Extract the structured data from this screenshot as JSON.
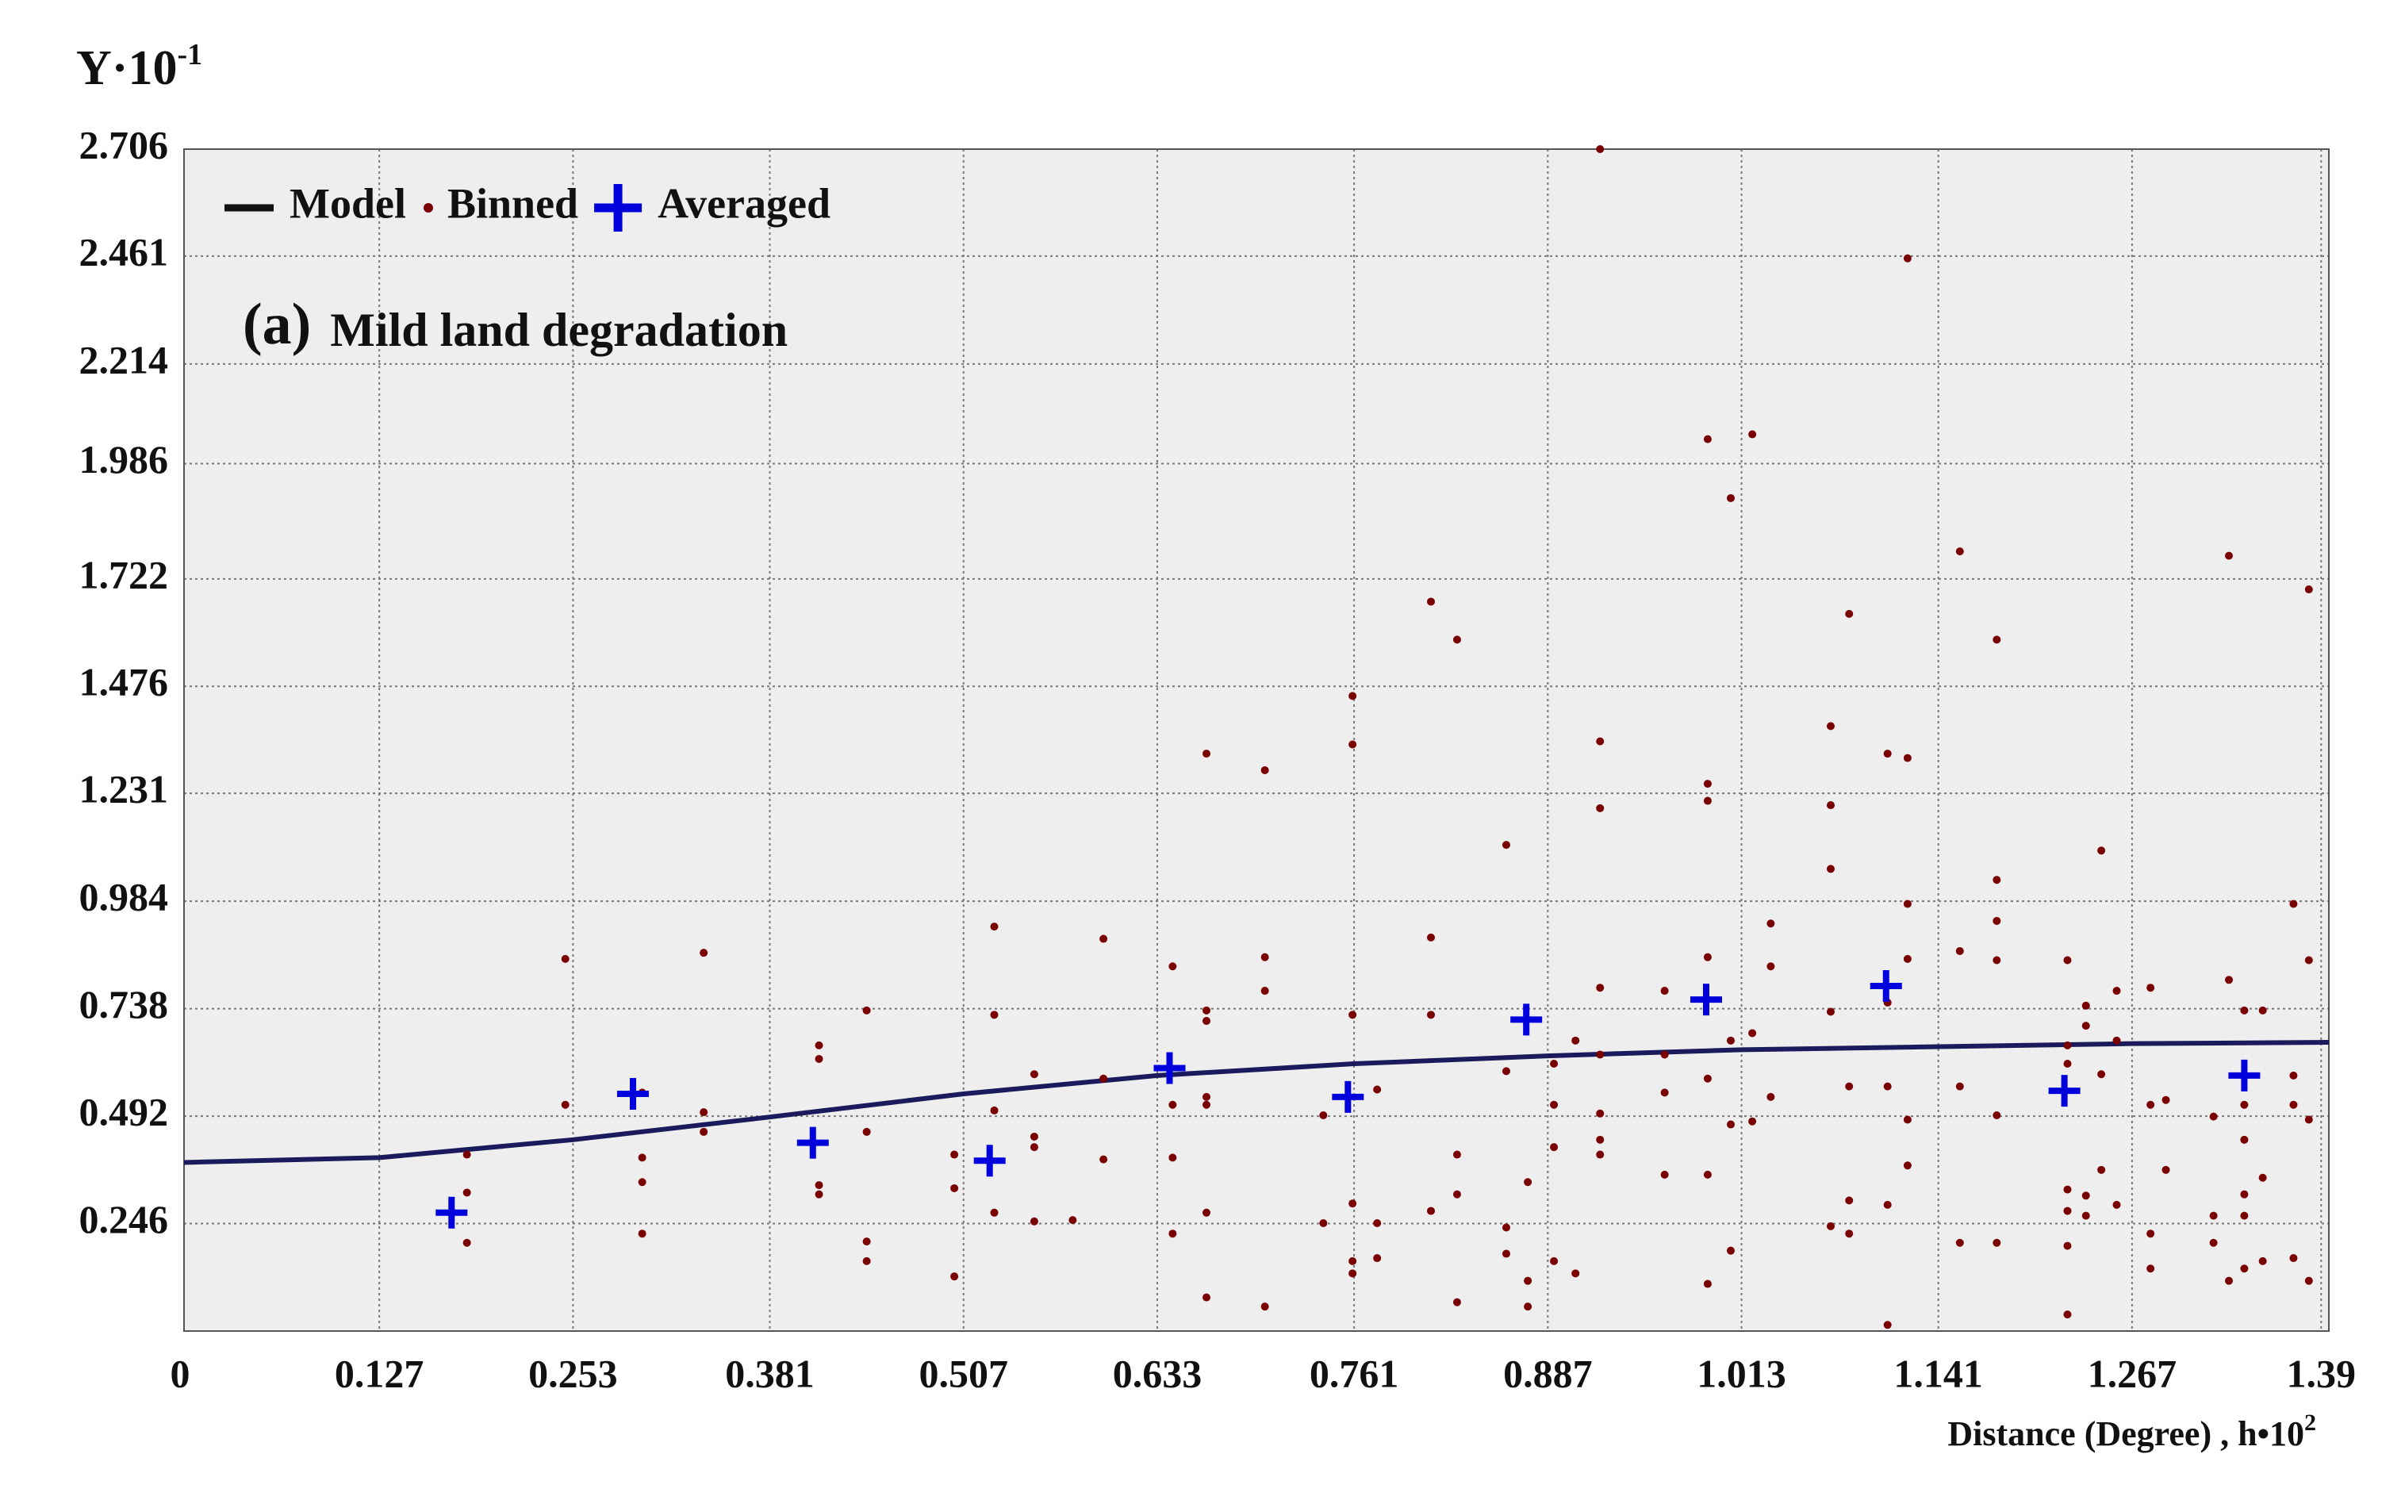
{
  "chart_data": {
    "type": "scatter",
    "y_label": "Y·10",
    "y_label_exponent": "-1",
    "x_label": "Distance (Degree) , h•10",
    "x_label_exponent": "2",
    "annotation_letter": "(a)",
    "annotation": "Mild land degradation",
    "xlim": [
      0,
      1.395
    ],
    "ylim": [
      0,
      2.706
    ],
    "xticks": [
      0,
      0.127,
      0.253,
      0.381,
      0.507,
      0.633,
      0.761,
      0.887,
      1.013,
      1.141,
      1.267,
      1.39
    ],
    "yticks": [
      0.246,
      0.492,
      0.738,
      0.984,
      1.231,
      1.476,
      1.722,
      1.986,
      2.214,
      2.461,
      2.706
    ],
    "grid": true,
    "background": "#eeeeee",
    "series": [
      {
        "name": "Model",
        "type": "line",
        "color": "#1a1a5c",
        "x": [
          0,
          0.127,
          0.253,
          0.381,
          0.507,
          0.633,
          0.761,
          0.887,
          1.013,
          1.141,
          1.267,
          1.395
        ],
        "values": [
          0.386,
          0.397,
          0.438,
          0.49,
          0.543,
          0.585,
          0.612,
          0.63,
          0.644,
          0.651,
          0.658,
          0.661
        ]
      },
      {
        "name": "Binned",
        "type": "scatter",
        "marker": "dot",
        "color": "#7a0000",
        "x": [
          0.184,
          0.184,
          0.184,
          0.248,
          0.248,
          0.298,
          0.298,
          0.298,
          0.298,
          0.338,
          0.338,
          0.338,
          0.413,
          0.413,
          0.413,
          0.413,
          0.444,
          0.444,
          0.444,
          0.444,
          0.501,
          0.501,
          0.501,
          0.527,
          0.527,
          0.527,
          0.527,
          0.553,
          0.553,
          0.553,
          0.553,
          0.578,
          0.598,
          0.598,
          0.598,
          0.643,
          0.643,
          0.643,
          0.643,
          0.665,
          0.665,
          0.665,
          0.665,
          0.665,
          0.665,
          0.665,
          0.703,
          0.703,
          0.703,
          0.703,
          0.741,
          0.741,
          0.76,
          0.76,
          0.76,
          0.76,
          0.76,
          0.76,
          0.776,
          0.776,
          0.776,
          0.811,
          0.811,
          0.811,
          0.811,
          0.828,
          0.828,
          0.828,
          0.828,
          0.86,
          0.86,
          0.86,
          0.86,
          0.874,
          0.874,
          0.874,
          0.891,
          0.891,
          0.891,
          0.891,
          0.905,
          0.905,
          0.921,
          0.921,
          0.921,
          0.921,
          0.921,
          0.921,
          0.921,
          0.921,
          0.963,
          0.963,
          0.963,
          0.963,
          0.991,
          0.991,
          0.991,
          0.991,
          0.991,
          0.991,
          0.991,
          1.006,
          1.006,
          1.006,
          1.006,
          1.02,
          1.02,
          1.02,
          1.032,
          1.032,
          1.032,
          1.071,
          1.071,
          1.071,
          1.071,
          1.071,
          1.083,
          1.083,
          1.083,
          1.083,
          1.108,
          1.108,
          1.108,
          1.108,
          1.108,
          1.121,
          1.121,
          1.121,
          1.121,
          1.121,
          1.121,
          1.155,
          1.155,
          1.155,
          1.155,
          1.179,
          1.179,
          1.179,
          1.179,
          1.179,
          1.179,
          1.225,
          1.225,
          1.225,
          1.225,
          1.225,
          1.225,
          1.225,
          1.237,
          1.237,
          1.237,
          1.237,
          1.247,
          1.247,
          1.247,
          1.257,
          1.257,
          1.257,
          1.279,
          1.279,
          1.279,
          1.279,
          1.289,
          1.289,
          1.32,
          1.32,
          1.32,
          1.33,
          1.33,
          1.33,
          1.34,
          1.34,
          1.34,
          1.34,
          1.34,
          1.34,
          1.352,
          1.352,
          1.352,
          1.372,
          1.372,
          1.372,
          1.372,
          1.382,
          1.382,
          1.382,
          1.382
        ],
        "values": [
          0.317,
          0.404,
          0.202,
          0.852,
          0.518,
          0.546,
          0.397,
          0.341,
          0.223,
          0.866,
          0.501,
          0.456,
          0.654,
          0.623,
          0.334,
          0.313,
          0.734,
          0.456,
          0.205,
          0.16,
          0.404,
          0.327,
          0.125,
          0.926,
          0.724,
          0.505,
          0.271,
          0.588,
          0.445,
          0.421,
          0.251,
          0.254,
          0.898,
          0.578,
          0.393,
          0.835,
          0.518,
          0.397,
          0.223,
          1.322,
          0.734,
          0.71,
          0.536,
          0.518,
          0.271,
          0.077,
          1.284,
          0.856,
          0.779,
          0.056,
          0.494,
          0.247,
          1.454,
          1.343,
          0.724,
          0.292,
          0.16,
          0.132,
          0.553,
          0.247,
          0.167,
          1.67,
          0.901,
          0.724,
          0.275,
          1.583,
          0.404,
          0.313,
          0.066,
          1.113,
          0.595,
          0.237,
          0.177,
          0.341,
          0.115,
          0.056,
          0.612,
          0.518,
          0.421,
          0.16,
          0.665,
          0.132,
          2.706,
          1.35,
          1.197,
          0.786,
          0.633,
          0.498,
          0.438,
          0.404,
          0.779,
          0.633,
          0.546,
          0.358,
          2.042,
          1.253,
          1.214,
          0.856,
          0.578,
          0.358,
          0.108,
          1.907,
          0.665,
          0.473,
          0.184,
          2.053,
          0.682,
          0.48,
          0.933,
          0.835,
          0.536,
          1.385,
          1.204,
          1.058,
          0.731,
          0.24,
          1.642,
          0.56,
          0.299,
          0.223,
          1.322,
          0.752,
          0.56,
          0.289,
          0.014,
          2.456,
          1.312,
          0.978,
          0.852,
          0.379,
          0.484,
          1.785,
          0.87,
          0.56,
          0.202,
          1.583,
          1.033,
          0.939,
          0.849,
          0.494,
          0.202,
          0.849,
          0.654,
          0.612,
          0.324,
          0.275,
          0.195,
          0.038,
          0.745,
          0.699,
          0.31,
          0.264,
          1.1,
          0.588,
          0.369,
          0.779,
          0.665,
          0.289,
          0.786,
          0.518,
          0.223,
          0.143,
          0.529,
          0.369,
          0.491,
          0.264,
          0.202,
          1.775,
          0.804,
          0.115,
          0.734,
          0.518,
          0.438,
          0.313,
          0.264,
          0.143,
          0.734,
          0.351,
          0.16,
          0.978,
          0.585,
          0.518,
          0.167,
          1.698,
          0.849,
          0.484,
          0.115
        ]
      },
      {
        "name": "Averaged",
        "type": "scatter",
        "marker": "cross",
        "color": "#0000dd",
        "x": [
          0.174,
          0.292,
          0.409,
          0.524,
          0.641,
          0.757,
          0.873,
          0.99,
          1.107,
          1.223,
          1.34
        ],
        "values": [
          0.271,
          0.543,
          0.431,
          0.39,
          0.602,
          0.536,
          0.713,
          0.759,
          0.79,
          0.55,
          0.585
        ]
      }
    ]
  }
}
